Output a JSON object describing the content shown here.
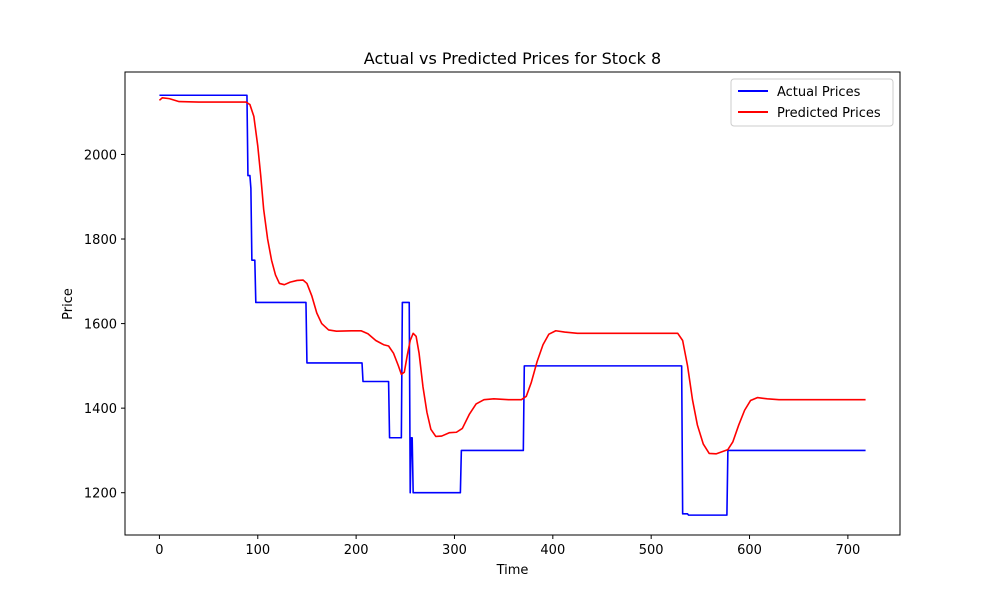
{
  "chart_data": {
    "type": "line",
    "title": "Actual vs Predicted Prices for Stock 8",
    "xlabel": "Time",
    "ylabel": "Price",
    "xlim": [
      -35,
      753
    ],
    "ylim": [
      1100,
      2195
    ],
    "xticks": [
      0,
      100,
      200,
      300,
      400,
      500,
      600,
      700
    ],
    "yticks": [
      1200,
      1400,
      1600,
      1800,
      2000
    ],
    "grid": false,
    "legend_position": "upper right",
    "series": [
      {
        "name": "Actual Prices",
        "color": "#0000ff",
        "points": [
          [
            0,
            2140
          ],
          [
            89,
            2140
          ],
          [
            90,
            1950
          ],
          [
            92,
            1950
          ],
          [
            93,
            1920
          ],
          [
            94,
            1750
          ],
          [
            97,
            1750
          ],
          [
            98,
            1650
          ],
          [
            149,
            1650
          ],
          [
            150,
            1507
          ],
          [
            206,
            1507
          ],
          [
            207,
            1463
          ],
          [
            233,
            1463
          ],
          [
            234,
            1330
          ],
          [
            246,
            1330
          ],
          [
            247,
            1650
          ],
          [
            254,
            1650
          ],
          [
            255,
            1200
          ],
          [
            256,
            1330
          ],
          [
            257,
            1330
          ],
          [
            258,
            1200
          ],
          [
            306,
            1200
          ],
          [
            307,
            1300
          ],
          [
            370,
            1300
          ],
          [
            371,
            1500
          ],
          [
            531,
            1500
          ],
          [
            532,
            1150
          ],
          [
            537,
            1150
          ],
          [
            538,
            1147
          ],
          [
            577,
            1147
          ],
          [
            578,
            1300
          ],
          [
            718,
            1300
          ]
        ]
      },
      {
        "name": "Predicted Prices",
        "color": "#ff0000",
        "points": [
          [
            0,
            2128
          ],
          [
            3,
            2134
          ],
          [
            10,
            2132
          ],
          [
            20,
            2125
          ],
          [
            40,
            2124
          ],
          [
            60,
            2124
          ],
          [
            80,
            2124
          ],
          [
            88,
            2124
          ],
          [
            92,
            2118
          ],
          [
            96,
            2090
          ],
          [
            100,
            2020
          ],
          [
            103,
            1950
          ],
          [
            106,
            1870
          ],
          [
            110,
            1800
          ],
          [
            114,
            1750
          ],
          [
            118,
            1715
          ],
          [
            122,
            1695
          ],
          [
            127,
            1692
          ],
          [
            133,
            1698
          ],
          [
            140,
            1702
          ],
          [
            146,
            1703
          ],
          [
            150,
            1695
          ],
          [
            155,
            1665
          ],
          [
            160,
            1625
          ],
          [
            165,
            1600
          ],
          [
            172,
            1585
          ],
          [
            180,
            1582
          ],
          [
            195,
            1583
          ],
          [
            205,
            1583
          ],
          [
            212,
            1576
          ],
          [
            220,
            1560
          ],
          [
            228,
            1550
          ],
          [
            233,
            1547
          ],
          [
            238,
            1530
          ],
          [
            243,
            1500
          ],
          [
            246,
            1480
          ],
          [
            249,
            1485
          ],
          [
            252,
            1525
          ],
          [
            255,
            1560
          ],
          [
            258,
            1577
          ],
          [
            261,
            1570
          ],
          [
            264,
            1530
          ],
          [
            268,
            1450
          ],
          [
            272,
            1390
          ],
          [
            276,
            1350
          ],
          [
            281,
            1333
          ],
          [
            287,
            1334
          ],
          [
            295,
            1342
          ],
          [
            302,
            1343
          ],
          [
            308,
            1352
          ],
          [
            315,
            1385
          ],
          [
            322,
            1410
          ],
          [
            330,
            1420
          ],
          [
            340,
            1422
          ],
          [
            355,
            1420
          ],
          [
            368,
            1420
          ],
          [
            373,
            1428
          ],
          [
            378,
            1460
          ],
          [
            384,
            1510
          ],
          [
            390,
            1550
          ],
          [
            396,
            1575
          ],
          [
            403,
            1583
          ],
          [
            412,
            1580
          ],
          [
            425,
            1577
          ],
          [
            450,
            1577
          ],
          [
            480,
            1577
          ],
          [
            510,
            1577
          ],
          [
            522,
            1577
          ],
          [
            527,
            1577
          ],
          [
            532,
            1560
          ],
          [
            537,
            1500
          ],
          [
            542,
            1420
          ],
          [
            547,
            1360
          ],
          [
            553,
            1315
          ],
          [
            559,
            1293
          ],
          [
            566,
            1292
          ],
          [
            572,
            1297
          ],
          [
            578,
            1302
          ],
          [
            583,
            1320
          ],
          [
            589,
            1360
          ],
          [
            595,
            1395
          ],
          [
            601,
            1418
          ],
          [
            608,
            1425
          ],
          [
            618,
            1422
          ],
          [
            630,
            1420
          ],
          [
            660,
            1420
          ],
          [
            690,
            1420
          ],
          [
            718,
            1420
          ]
        ]
      }
    ]
  }
}
